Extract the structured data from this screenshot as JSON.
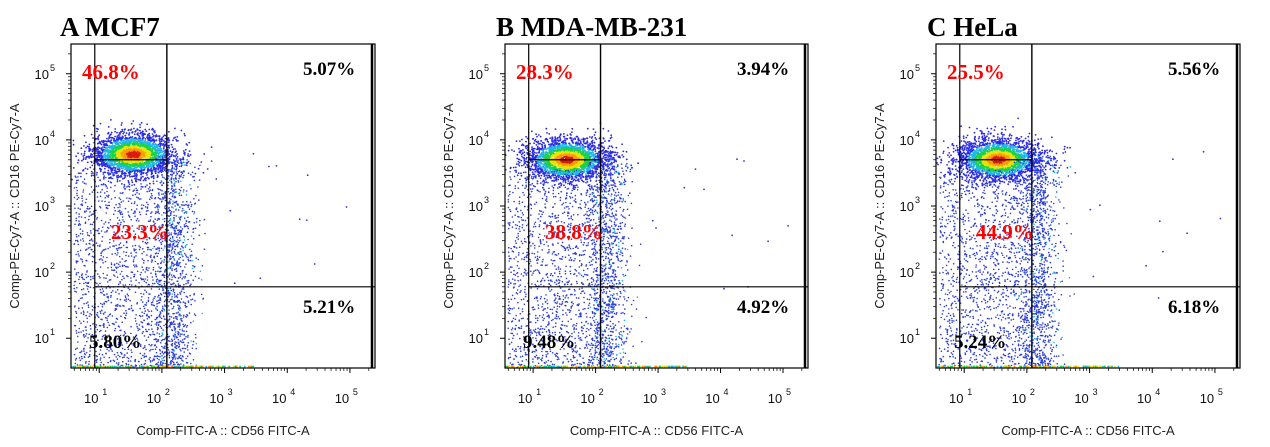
{
  "chart_data": [
    {
      "type": "scatter",
      "panel_label": "A",
      "title": "MCF7",
      "xlabel": "Comp-FITC-A :: CD56 FITC-A",
      "ylabel": "Comp-PE-Cy7-A :: CD16 PE-Cy7-A",
      "x_scale": "log",
      "y_scale": "log",
      "x_ticks": [
        "1",
        "2",
        "3",
        "4",
        "5"
      ],
      "y_ticks": [
        "1",
        "2",
        "3",
        "4",
        "5"
      ],
      "tick_base": "10",
      "gate_x": 120,
      "gate_y_upper": 5000,
      "gate_y_lower": 60,
      "quadrants": [
        {
          "label": "46.8%",
          "color": "#ff0000"
        },
        {
          "label": "5.07%",
          "color": "#000000"
        },
        {
          "label": "23.3%",
          "color": "#ff0000"
        },
        {
          "label": "5.21%",
          "color": "#000000"
        },
        {
          "label": "5.80%",
          "color": "#000000"
        }
      ],
      "population_center": [
        35,
        6000
      ]
    },
    {
      "type": "scatter",
      "panel_label": "B",
      "title": "MDA-MB-231",
      "xlabel": "Comp-FITC-A :: CD56 FITC-A",
      "ylabel": "Comp-PE-Cy7-A :: CD16 PE-Cy7-A",
      "x_scale": "log",
      "y_scale": "log",
      "x_ticks": [
        "1",
        "2",
        "3",
        "4",
        "5"
      ],
      "y_ticks": [
        "1",
        "2",
        "3",
        "4",
        "5"
      ],
      "tick_base": "10",
      "gate_x": 120,
      "gate_y_upper": 5000,
      "gate_y_lower": 60,
      "quadrants": [
        {
          "label": "28.3%",
          "color": "#ff0000"
        },
        {
          "label": "3.94%",
          "color": "#000000"
        },
        {
          "label": "38.8%",
          "color": "#ff0000"
        },
        {
          "label": "4.92%",
          "color": "#000000"
        },
        {
          "label": "9.48%",
          "color": "#000000"
        }
      ],
      "population_center": [
        35,
        5000
      ]
    },
    {
      "type": "scatter",
      "panel_label": "C",
      "title": "HeLa",
      "xlabel": "Comp-FITC-A :: CD56 FITC-A",
      "ylabel": "Comp-PE-Cy7-A :: CD16 PE-Cy7-A",
      "x_scale": "log",
      "y_scale": "log",
      "x_ticks": [
        "1",
        "2",
        "3",
        "4",
        "5"
      ],
      "y_ticks": [
        "1",
        "2",
        "3",
        "4",
        "5"
      ],
      "tick_base": "10",
      "gate_x": 120,
      "gate_y_upper": 5000,
      "gate_y_lower": 60,
      "quadrants": [
        {
          "label": "25.5%",
          "color": "#ff0000"
        },
        {
          "label": "5.56%",
          "color": "#000000"
        },
        {
          "label": "44.9%",
          "color": "#ff0000"
        },
        {
          "label": "6.18%",
          "color": "#000000"
        },
        {
          "label": "5.24%",
          "color": "#000000"
        }
      ],
      "population_center": [
        35,
        5000
      ]
    }
  ]
}
